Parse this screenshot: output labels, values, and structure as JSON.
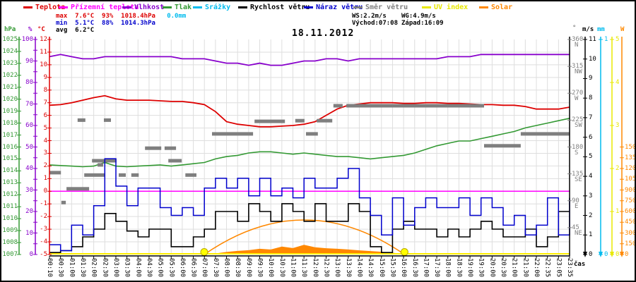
{
  "title": "18.11.2012",
  "legend": [
    {
      "label": "Teplota",
      "color": "#dd0000"
    },
    {
      "label": "Přízemní teplota",
      "color": "#ff00ff"
    },
    {
      "label": "Vlhkost",
      "color": "#8800cc"
    },
    {
      "label": "Tlak",
      "color": "#339933"
    },
    {
      "label": "Srážky",
      "color": "#00bbee"
    },
    {
      "label": "Rychlost větru",
      "color": "#000000"
    },
    {
      "label": "Náraz větru",
      "color": "#0000cc"
    },
    {
      "label": "Směr větru",
      "color": "#7f7f7f"
    },
    {
      "label": "UV index",
      "color": "#e8e800"
    },
    {
      "label": "Solar",
      "color": "#ff8800"
    }
  ],
  "stats": {
    "max": {
      "label": "max",
      "temp": "7.6°C",
      "hum": "93%",
      "press": "1018.4hPa",
      "rain": "0.0mm"
    },
    "min": {
      "label": "min",
      "temp": "5.1°C",
      "hum": "88%",
      "press": "1014.3hPa"
    },
    "avg": {
      "label": "avg",
      "temp": "6.2°C"
    },
    "ws": "WS:2.2m/s",
    "wg": "WG:4.9m/s",
    "sunrise": "Východ:07:08",
    "sunset": "Západ:16:09"
  },
  "xlabel": "čas",
  "axes": {
    "left": [
      {
        "name": "hPa",
        "color": "#339933",
        "min": 1007,
        "max": 1025,
        "label_step": 1
      },
      {
        "name": "%",
        "color": "#8800cc",
        "min": 0,
        "max": 100,
        "label_step": 10
      },
      {
        "name": "°C",
        "color": "#dd0000",
        "min": -5,
        "max": 12,
        "label_step": 1
      }
    ],
    "right": [
      {
        "name": "°",
        "color": "#808080",
        "labels": [
          [
            "360",
            "N"
          ],
          [
            "315",
            "NW"
          ],
          [
            "270",
            "W"
          ],
          [
            "225",
            "SW"
          ],
          [
            "180",
            "S"
          ],
          [
            "135",
            "SE"
          ],
          [
            "90",
            "E"
          ],
          [
            "45",
            "NE"
          ]
        ]
      },
      {
        "name": "m/s",
        "color": "#000000",
        "min": 0,
        "max": 11,
        "label_step": 1
      },
      {
        "name": "mm",
        "color": "#00bbee",
        "min": 0,
        "max": 1,
        "label_step": 1
      },
      {
        "name": "",
        "color": "#e8e800",
        "min": 0,
        "max": 5,
        "label_step": 1
      },
      {
        "name": "W",
        "color": "#ff8800",
        "min": 0,
        "max": 1500,
        "label_step": 150
      }
    ]
  },
  "chart_data": {
    "type": "line",
    "grid": true,
    "x_ticks": [
      "00:10",
      "00:30",
      "01:00",
      "01:30",
      "02:00",
      "02:30",
      "03:00",
      "03:30",
      "04:00",
      "04:30",
      "05:00",
      "05:30",
      "06:00",
      "06:30",
      "07:00",
      "07:30",
      "08:00",
      "08:30",
      "09:00",
      "09:30",
      "10:00",
      "10:30",
      "11:00",
      "11:30",
      "12:00",
      "12:30",
      "13:00",
      "13:30",
      "14:00",
      "14:30",
      "15:00",
      "15:30",
      "16:00",
      "16:30",
      "17:00",
      "17:30",
      "18:00",
      "18:30",
      "19:00",
      "19:30",
      "20:00",
      "20:30",
      "21:00",
      "21:30",
      "22:00",
      "22:35",
      "23:05",
      "23:35"
    ],
    "axis_ranges": {
      "°C": [
        -5,
        12
      ],
      "%": [
        0,
        100
      ],
      "hPa": [
        1007,
        1025
      ],
      "m/s": [
        0,
        11
      ],
      "mm": [
        0,
        1
      ],
      "UV": [
        0,
        5
      ],
      "W": [
        0,
        3000
      ],
      "deg": [
        0,
        360
      ]
    },
    "series": [
      {
        "name": "Teplota",
        "unit": "°C",
        "color": "#dd0000",
        "style": "line",
        "values": [
          6.8,
          6.85,
          7.0,
          7.2,
          7.4,
          7.55,
          7.3,
          7.2,
          7.2,
          7.2,
          7.15,
          7.1,
          7.1,
          7.0,
          6.85,
          6.3,
          5.5,
          5.3,
          5.2,
          5.1,
          5.1,
          5.15,
          5.2,
          5.3,
          5.5,
          6.0,
          6.5,
          6.8,
          6.9,
          7.0,
          7.0,
          7.0,
          6.95,
          6.95,
          7.0,
          7.0,
          6.95,
          6.95,
          6.9,
          6.85,
          6.85,
          6.8,
          6.8,
          6.7,
          6.5,
          6.5,
          6.5,
          6.65
        ]
      },
      {
        "name": "Přízemní teplota",
        "unit": "°C",
        "color": "#ff00ff",
        "style": "line",
        "values": [
          0,
          0,
          0,
          0,
          0,
          0,
          0,
          0,
          0,
          0,
          0,
          0,
          0,
          0,
          0,
          0,
          0,
          0,
          0,
          0,
          0,
          0,
          0,
          0,
          0,
          0,
          0,
          0,
          0,
          0,
          0,
          0,
          0,
          0,
          0,
          0,
          0,
          0,
          0,
          0,
          0,
          0,
          0,
          0,
          0,
          0,
          0,
          0
        ]
      },
      {
        "name": "Vlhkost",
        "unit": "%",
        "color": "#8800cc",
        "style": "line",
        "values": [
          92,
          93,
          92,
          91,
          91,
          92,
          92,
          92,
          92,
          92,
          92,
          92,
          91,
          91,
          91,
          90,
          89,
          89,
          88,
          89,
          88,
          88,
          89,
          90,
          90,
          91,
          91,
          90,
          91,
          91,
          91,
          91,
          91,
          91,
          91,
          91,
          92,
          92,
          92,
          93,
          93,
          93,
          93,
          93,
          93,
          93,
          93,
          93
        ]
      },
      {
        "name": "Tlak",
        "unit": "hPa",
        "color": "#339933",
        "style": "line",
        "values": [
          1014.5,
          1014.45,
          1014.4,
          1014.35,
          1014.4,
          1014.7,
          1014.4,
          1014.35,
          1014.4,
          1014.45,
          1014.5,
          1014.4,
          1014.5,
          1014.6,
          1014.7,
          1015.0,
          1015.2,
          1015.3,
          1015.5,
          1015.6,
          1015.6,
          1015.5,
          1015.4,
          1015.5,
          1015.4,
          1015.3,
          1015.2,
          1015.2,
          1015.1,
          1015.0,
          1015.1,
          1015.2,
          1015.3,
          1015.5,
          1015.8,
          1016.1,
          1016.3,
          1016.5,
          1016.5,
          1016.7,
          1016.9,
          1017.1,
          1017.3,
          1017.6,
          1017.8,
          1018.0,
          1018.2,
          1018.4
        ]
      },
      {
        "name": "Srážky",
        "unit": "mm",
        "color": "#00bbee",
        "style": "line",
        "values": [
          0,
          0,
          0,
          0,
          0,
          0,
          0,
          0,
          0,
          0,
          0,
          0,
          0,
          0,
          0,
          0,
          0,
          0,
          0,
          0,
          0,
          0,
          0,
          0,
          0,
          0,
          0,
          0,
          0,
          0,
          0,
          0,
          0,
          0,
          0,
          0,
          0,
          0,
          0,
          0,
          0,
          0,
          0,
          0,
          0,
          0,
          0,
          0
        ]
      },
      {
        "name": "Rychlost větru",
        "unit": "m/s",
        "color": "#000000",
        "style": "step",
        "values": [
          0.1,
          0.2,
          0.4,
          0.9,
          1.3,
          2.1,
          1.7,
          1.2,
          0.9,
          1.3,
          1.3,
          0.4,
          0.4,
          0.9,
          1.3,
          2.2,
          2.2,
          1.7,
          2.6,
          2.2,
          1.7,
          2.6,
          2.2,
          1.7,
          2.6,
          1.7,
          1.7,
          2.6,
          2.2,
          0.4,
          0.1,
          1.3,
          1.7,
          1.3,
          1.3,
          0.9,
          1.3,
          0.9,
          1.3,
          1.7,
          1.3,
          0.9,
          0.9,
          1.3,
          0.4,
          0.9,
          2.2,
          2.2
        ]
      },
      {
        "name": "Náraz větru",
        "unit": "m/s",
        "color": "#0000cc",
        "style": "step",
        "values": [
          0.5,
          0.2,
          1.5,
          1.0,
          2.5,
          4.9,
          3.5,
          2.5,
          3.4,
          3.4,
          2.4,
          2.0,
          2.4,
          2.0,
          3.4,
          3.9,
          3.4,
          3.9,
          3.0,
          3.9,
          3.0,
          3.4,
          2.9,
          3.9,
          3.4,
          3.4,
          3.9,
          4.4,
          2.9,
          2.0,
          1.0,
          2.9,
          1.5,
          2.4,
          2.9,
          2.4,
          2.4,
          2.9,
          2.0,
          2.9,
          2.4,
          1.5,
          2.0,
          1.0,
          1.5,
          2.9,
          1.0,
          2.9
        ]
      },
      {
        "name": "Solar",
        "unit": "W",
        "color": "#ff8800",
        "style": "area",
        "values": [
          0,
          0,
          0,
          0,
          0,
          0,
          0,
          0,
          0,
          0,
          0,
          0,
          0,
          0,
          5,
          15,
          35,
          50,
          60,
          80,
          70,
          110,
          90,
          135,
          100,
          88,
          80,
          70,
          58,
          48,
          38,
          25,
          8,
          0,
          0,
          0,
          0,
          0,
          0,
          0,
          0,
          0,
          0,
          0,
          0,
          0,
          0,
          0
        ]
      },
      {
        "name": "UV index",
        "unit": "UV",
        "color": "#ffee00",
        "style": "line",
        "values": [
          0,
          0,
          0,
          0,
          0,
          0,
          0,
          0,
          0,
          0,
          0,
          0,
          0,
          0,
          0,
          0,
          0,
          0,
          0,
          0,
          0,
          0,
          0,
          0,
          0,
          0,
          0,
          0,
          0,
          0,
          0,
          0,
          0,
          0,
          0,
          0,
          0,
          0,
          0,
          0,
          0,
          0,
          0,
          0,
          0,
          0,
          0,
          0
        ]
      }
    ],
    "wind_direction": {
      "name": "Směr větru",
      "unit": "deg",
      "color": "#7f7f7f",
      "segments": [
        [
          0,
          31,
          137
        ],
        [
          32,
          44,
          87
        ],
        [
          46,
          107,
          110
        ],
        [
          76,
          97,
          225
        ],
        [
          147,
          166,
          225
        ],
        [
          94,
          149,
          133
        ],
        [
          130,
          145,
          150
        ],
        [
          115,
          181,
          157
        ],
        [
          187,
          206,
          133
        ],
        [
          221,
          241,
          133
        ],
        [
          258,
          302,
          178
        ],
        [
          311,
          342,
          178
        ],
        [
          321,
          357,
          157
        ],
        [
          367,
          397,
          133
        ],
        [
          439,
          550,
          202
        ],
        [
          554,
          636,
          223
        ],
        [
          664,
          689,
          224
        ],
        [
          693,
          725,
          202
        ],
        [
          722,
          764,
          224
        ],
        [
          767,
          792,
          249
        ],
        [
          802,
          1174,
          249
        ],
        [
          1174,
          1273,
          182
        ],
        [
          1273,
          1405,
          202
        ]
      ]
    },
    "sun": {
      "sunrise": "07:08",
      "sunset": "16:09",
      "arc_color": "#ff8800",
      "marker_color": "#ffff00"
    },
    "colors": {
      "grid": "#dedede",
      "zero_line": "#ff00ff",
      "uv_base": "#ffee00"
    }
  }
}
